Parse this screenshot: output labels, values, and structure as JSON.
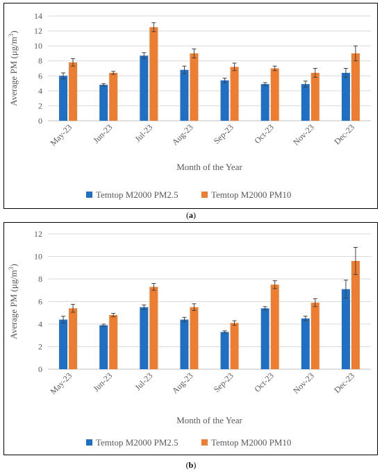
{
  "colors": {
    "pm25": "#1f6fc5",
    "pm10": "#ed7d31",
    "grid": "#d9d9d9",
    "axis_text": "#595959"
  },
  "chart_data": [
    {
      "type": "bar",
      "panel": "a",
      "caption": "a",
      "categories": [
        "May-23",
        "Jun-23",
        "Jul-23",
        "Aug-23",
        "Sep-23",
        "Oct-23",
        "Nov-23",
        "Dec-23"
      ],
      "xlabel": "Month of the Year",
      "ylabel": "Average PM (μg/m",
      "ylabel_sup": "3",
      "ylabel_close": ")",
      "ylim": [
        0,
        14
      ],
      "yticks": [
        0,
        2,
        4,
        6,
        8,
        10,
        12,
        14
      ],
      "grid": true,
      "legend": "bottom",
      "series": [
        {
          "name": "Temtop M2000 PM2.5",
          "values": [
            6.0,
            4.8,
            8.7,
            6.8,
            5.4,
            4.9,
            4.9,
            6.4
          ],
          "errors": [
            0.4,
            0.15,
            0.4,
            0.5,
            0.3,
            0.2,
            0.4,
            0.6
          ]
        },
        {
          "name": "Temtop M2000 PM10",
          "values": [
            7.8,
            6.4,
            12.5,
            9.0,
            7.2,
            7.0,
            6.4,
            9.0
          ],
          "errors": [
            0.5,
            0.2,
            0.6,
            0.6,
            0.5,
            0.3,
            0.6,
            1.0
          ]
        }
      ]
    },
    {
      "type": "bar",
      "panel": "b",
      "caption": "b",
      "categories": [
        "May-23",
        "Jun-23",
        "Jul-23",
        "Aug-23",
        "Sep-23",
        "Oct-23",
        "Nov-23",
        "Dec-23"
      ],
      "xlabel": "Month of the Year",
      "ylabel": "Average PM (μg/m",
      "ylabel_sup": "3",
      "ylabel_close": ")",
      "ylim": [
        0,
        12
      ],
      "yticks": [
        0,
        2,
        4,
        6,
        8,
        10,
        12
      ],
      "grid": true,
      "legend": "bottom",
      "series": [
        {
          "name": "Temtop M2000 PM2.5",
          "values": [
            4.4,
            3.9,
            5.5,
            4.4,
            3.3,
            5.4,
            4.5,
            7.1
          ],
          "errors": [
            0.3,
            0.1,
            0.2,
            0.2,
            0.1,
            0.15,
            0.2,
            0.8
          ]
        },
        {
          "name": "Temtop M2000 PM10",
          "values": [
            5.4,
            4.8,
            7.3,
            5.5,
            4.1,
            7.5,
            5.9,
            9.6
          ],
          "errors": [
            0.35,
            0.15,
            0.3,
            0.3,
            0.2,
            0.35,
            0.35,
            1.2
          ]
        }
      ]
    }
  ]
}
